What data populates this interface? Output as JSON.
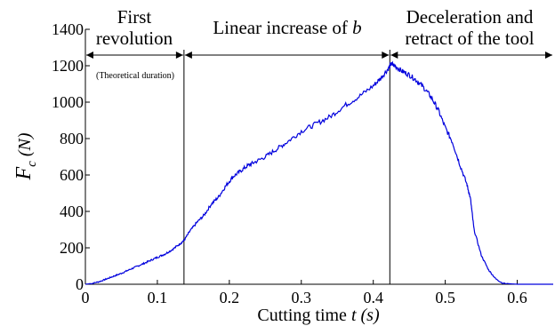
{
  "chart_data": {
    "type": "line",
    "title": "",
    "xlabel": {
      "text": "Cutting time ",
      "var": "t",
      "unit": " (s)"
    },
    "ylabel": {
      "var": "F",
      "sub": "c",
      "unit": " (N)"
    },
    "xlim": [
      0,
      0.65
    ],
    "ylim": [
      0,
      1400
    ],
    "x_ticks": [
      0,
      0.1,
      0.2,
      0.3,
      0.4,
      0.5,
      0.6
    ],
    "x_tick_labels": [
      "0",
      "0.1",
      "0.2",
      "0.3",
      "0.4",
      "0.5",
      "0.6"
    ],
    "y_ticks": [
      0,
      200,
      400,
      600,
      800,
      1000,
      1200,
      1400
    ],
    "y_tick_labels": [
      "0",
      "200",
      "400",
      "600",
      "800",
      "1000",
      "1200",
      "1400"
    ],
    "grid": false,
    "series_color": "#0000dd",
    "phase_boundaries": [
      0.137,
      0.423
    ],
    "phases": [
      {
        "label_lines": [
          "First",
          "revolution"
        ],
        "x_range": [
          0,
          0.137
        ],
        "note": "(Theoretical duration)"
      },
      {
        "label_lines": [
          "Linear increase of ",
          "b"
        ],
        "x_range": [
          0.137,
          0.423
        ]
      },
      {
        "label_lines": [
          "Deceleration and",
          "retract of the tool"
        ],
        "x_range": [
          0.423,
          0.65
        ]
      }
    ],
    "series": [
      {
        "x": [
          0,
          0.01,
          0.02,
          0.03,
          0.04,
          0.05,
          0.06,
          0.07,
          0.08,
          0.09,
          0.1,
          0.11,
          0.12,
          0.13,
          0.137,
          0.145,
          0.155,
          0.165,
          0.175,
          0.185,
          0.195,
          0.205,
          0.215,
          0.225,
          0.235,
          0.25,
          0.265,
          0.28,
          0.3,
          0.32,
          0.34,
          0.36,
          0.38,
          0.4,
          0.41,
          0.42,
          0.425,
          0.43,
          0.44,
          0.45,
          0.46,
          0.47,
          0.48,
          0.49,
          0.5,
          0.51,
          0.52,
          0.53,
          0.535,
          0.54,
          0.55,
          0.56,
          0.57,
          0.58,
          0.6,
          0.62,
          0.65
        ],
        "y": [
          0,
          5,
          15,
          30,
          45,
          60,
          78,
          95,
          112,
          130,
          148,
          165,
          188,
          218,
          240,
          290,
          340,
          380,
          440,
          480,
          540,
          590,
          620,
          650,
          670,
          700,
          740,
          780,
          840,
          880,
          920,
          980,
          1030,
          1090,
          1130,
          1180,
          1210,
          1200,
          1170,
          1150,
          1120,
          1080,
          1030,
          960,
          860,
          780,
          660,
          550,
          470,
          300,
          160,
          80,
          30,
          5,
          0,
          0,
          0
        ]
      }
    ]
  }
}
